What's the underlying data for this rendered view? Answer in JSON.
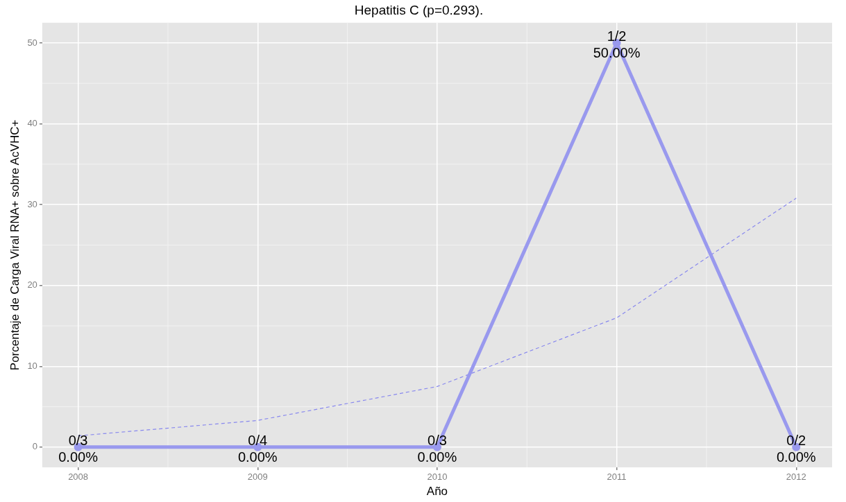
{
  "chart_data": {
    "type": "line",
    "title": "Hepatitis C (p=0.293).",
    "xlabel": "Año",
    "ylabel": "Porcentaje de Carga Viral RNA+ sobre AcVHC+",
    "categories": [
      "2008",
      "2009",
      "2010",
      "2011",
      "2012"
    ],
    "series": [
      {
        "color": "#9999ee",
        "values": [
          0,
          0,
          0,
          50,
          0
        ],
        "marker": "circle",
        "line_style": "solid",
        "value_labels": [
          "0/3\n0.00%",
          "0/4\n0.00%",
          "0/3\n0.00%",
          "1/2\n50.00%",
          "0/2\n0.00%"
        ]
      },
      {
        "color": "#8888ee",
        "values": [
          1.4,
          3.3,
          7.5,
          16.0,
          30.8
        ],
        "marker": "none",
        "line_style": "dashed"
      }
    ],
    "ylim": [
      -2.5,
      52.5
    ],
    "yticks": [
      0,
      10,
      20,
      30,
      40,
      50
    ],
    "grid": true,
    "legend": false
  }
}
